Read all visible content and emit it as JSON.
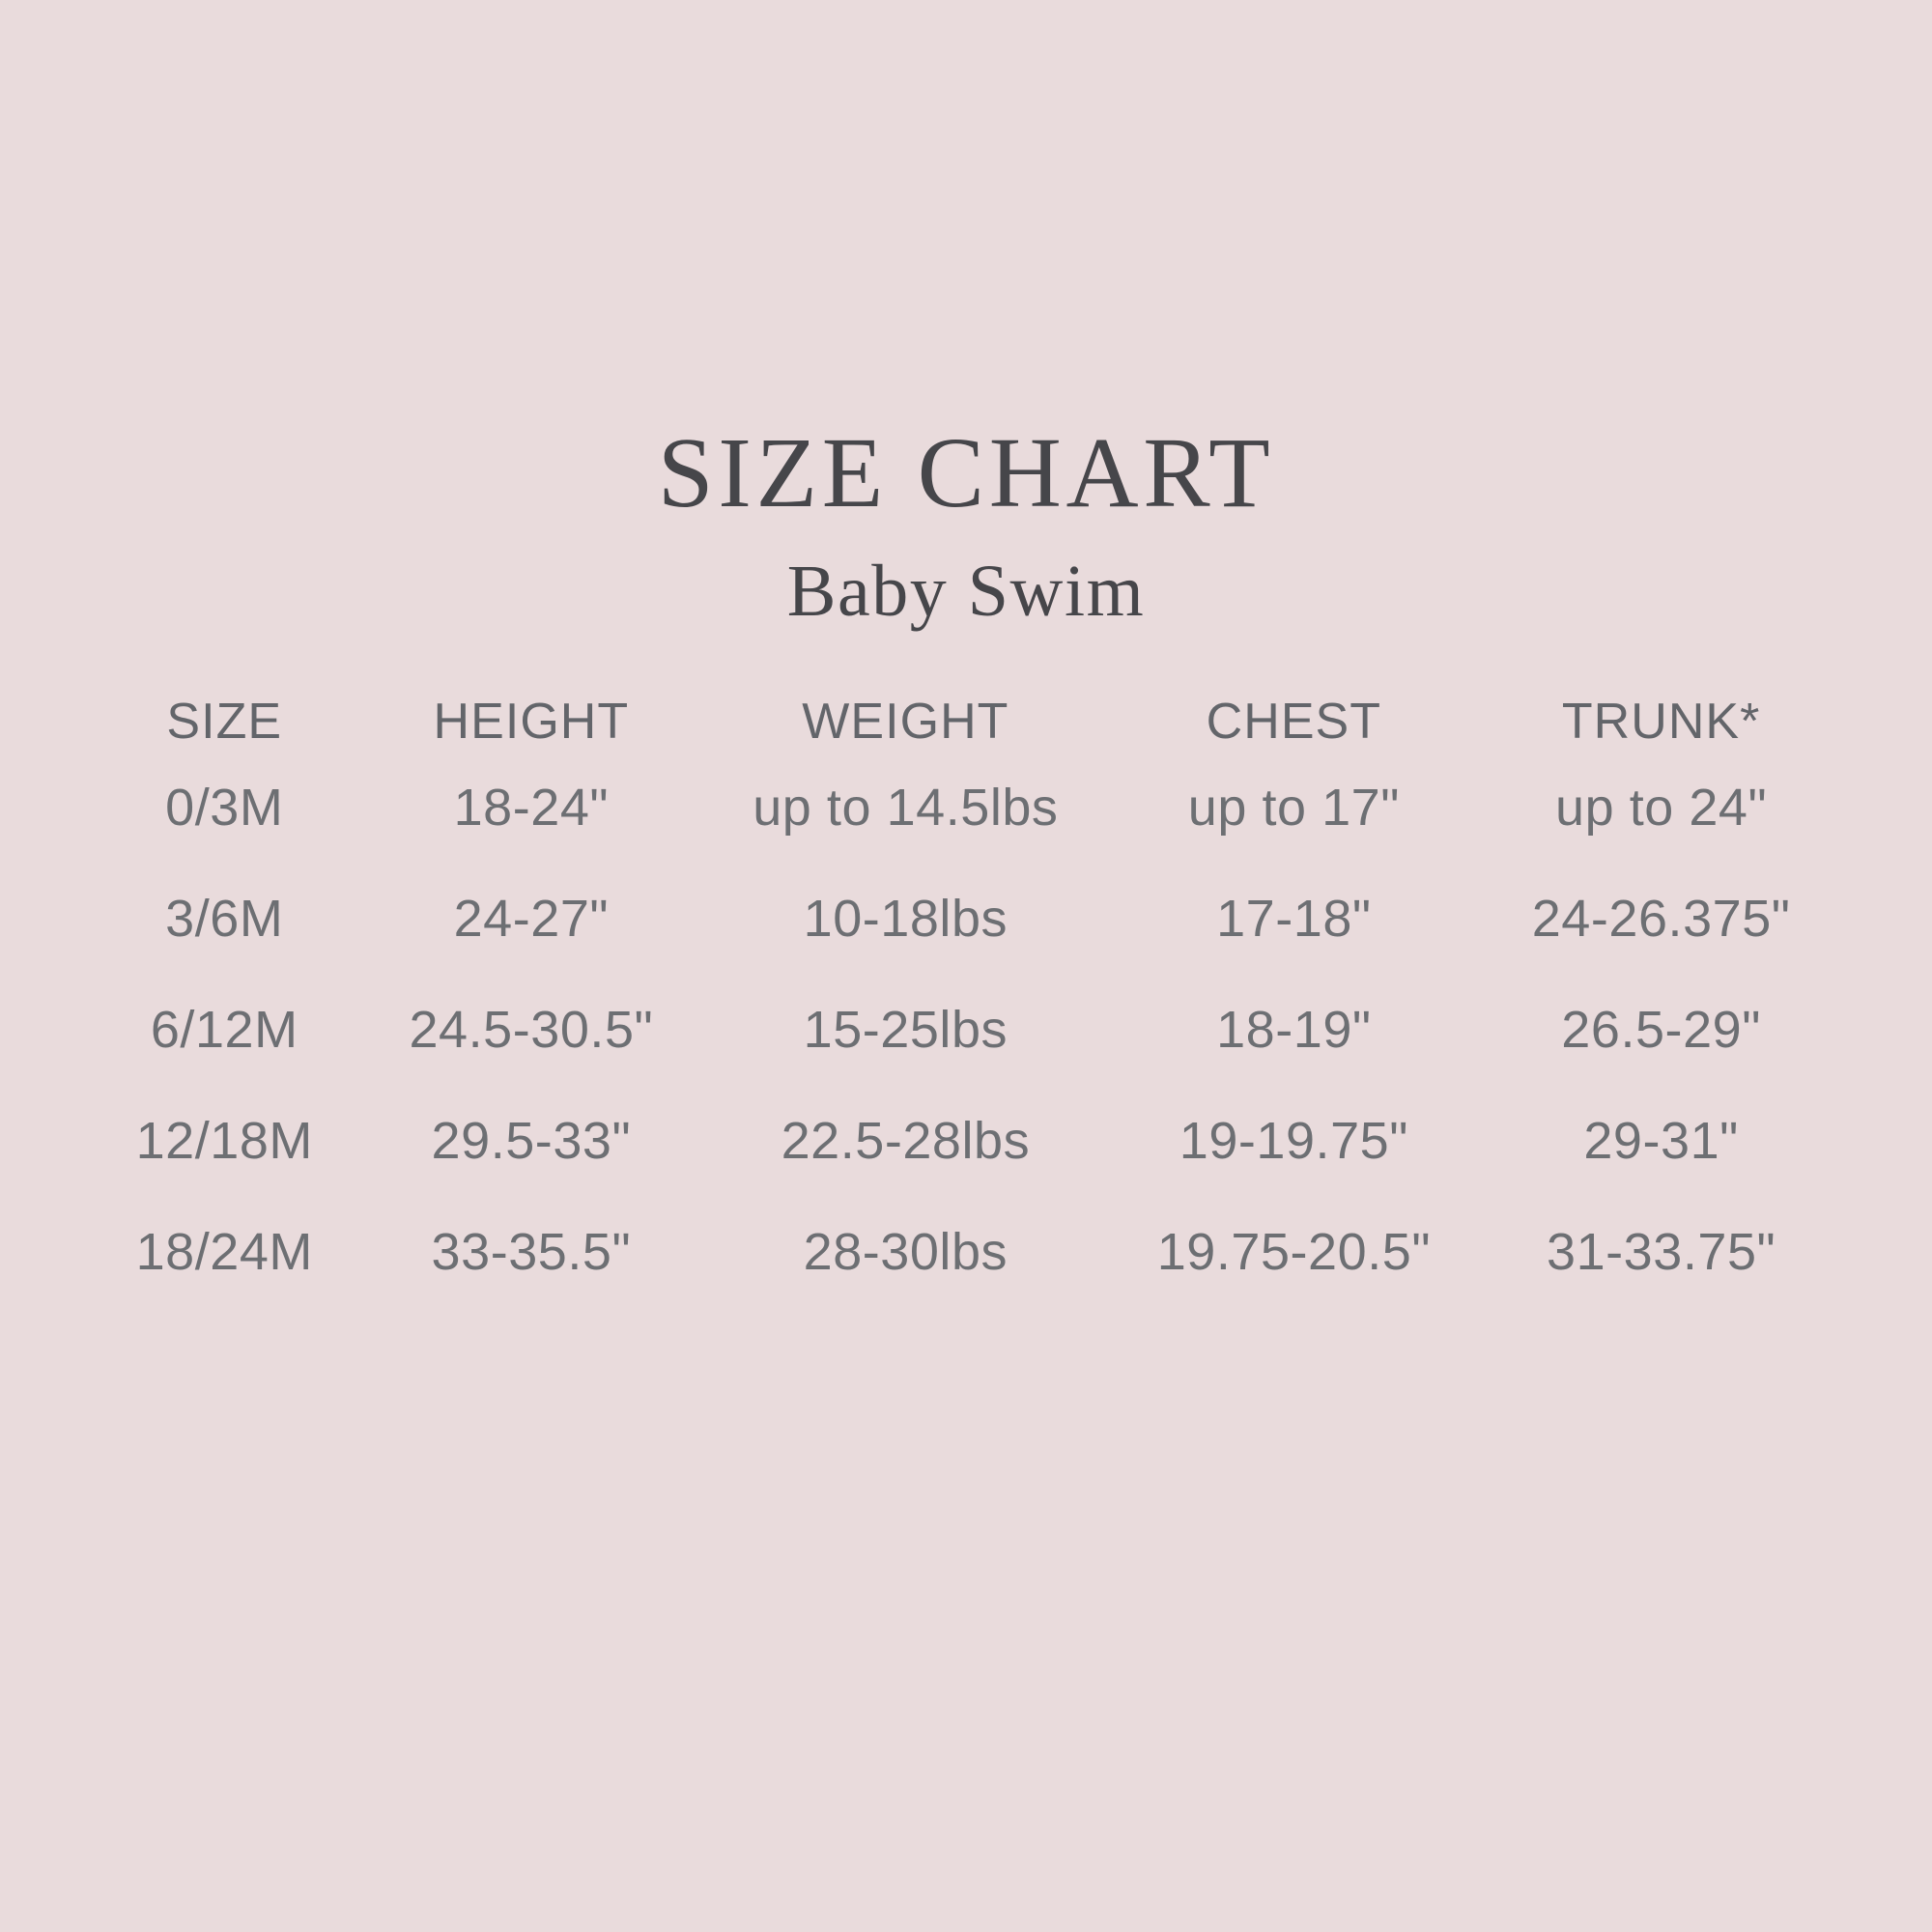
{
  "page": {
    "background_color": "#e9dbdc",
    "title_color": "#46464a",
    "header_text_color": "#63656a",
    "cell_text_color": "#6d6f73"
  },
  "chart_data": {
    "type": "table",
    "title": "SIZE CHART",
    "subtitle": "Baby Swim",
    "columns": [
      "SIZE",
      "HEIGHT",
      "WEIGHT",
      "CHEST",
      "TRUNK*"
    ],
    "rows": [
      [
        "0/3M",
        "18-24\"",
        "up to 14.5lbs",
        "up to 17\"",
        "up to 24\""
      ],
      [
        "3/6M",
        "24-27\"",
        "10-18lbs",
        "17-18\"",
        "24-26.375\""
      ],
      [
        "6/12M",
        "24.5-30.5\"",
        "15-25lbs",
        "18-19\"",
        "26.5-29\""
      ],
      [
        "12/18M",
        "29.5-33\"",
        "22.5-28lbs",
        "19-19.75\"",
        "29-31\""
      ],
      [
        "18/24M",
        "33-35.5\"",
        "28-30lbs",
        "19.75-20.5\"",
        "31-33.75\""
      ]
    ],
    "layout": {
      "grid": "off",
      "column_alignment": "center"
    }
  }
}
